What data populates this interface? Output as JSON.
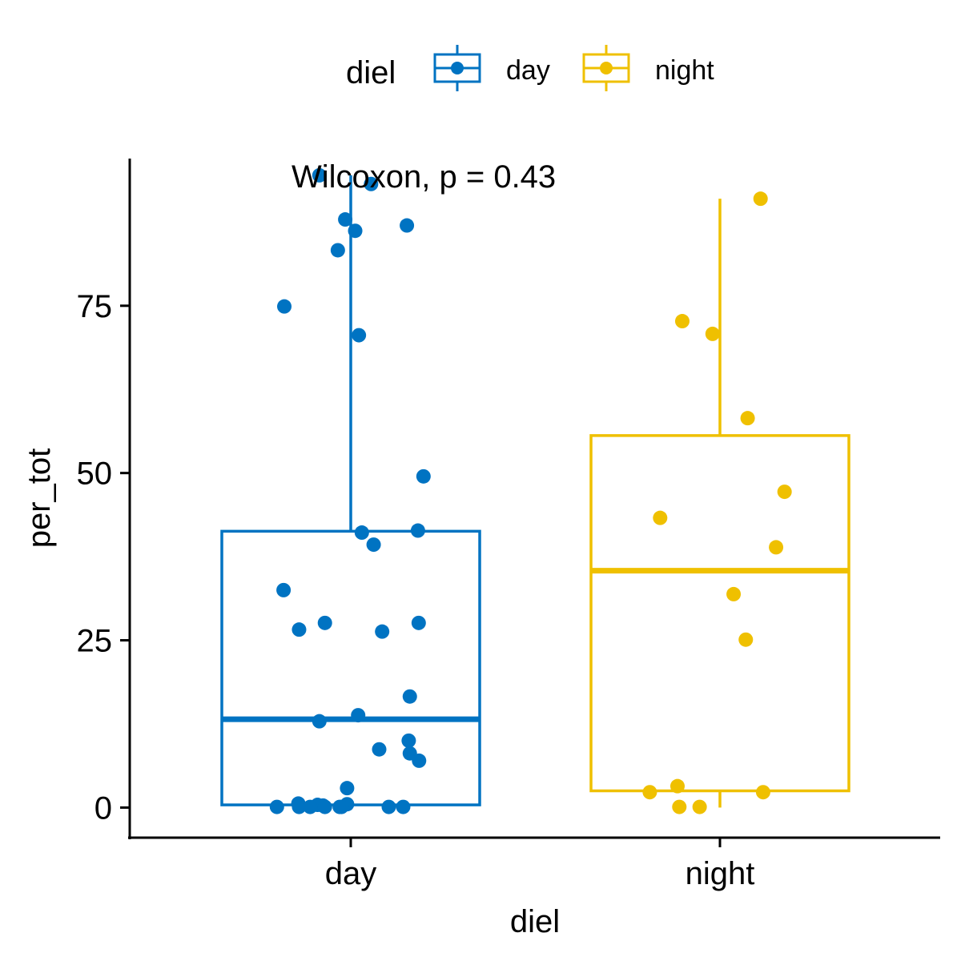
{
  "chart_data": {
    "type": "box",
    "xlabel": "diel",
    "ylabel": "per_tot",
    "annotation": "Wilcoxon, p = 0.43",
    "legend": {
      "title": "diel",
      "position": "top",
      "entries": [
        "day",
        "night"
      ]
    },
    "categories": [
      "day",
      "night"
    ],
    "ylim": [
      -4.5,
      97
    ],
    "yticks": [
      0,
      25,
      50,
      75
    ],
    "grid": false,
    "colors": {
      "day": "#0073C2",
      "night": "#EFC000"
    },
    "boxes": [
      {
        "category": "day",
        "whisker_low": 0,
        "q1": 0.4,
        "median": 13.2,
        "q3": 41.3,
        "whisker_high": 94.5
      },
      {
        "category": "night",
        "whisker_low": 0,
        "q1": 2.5,
        "median": 35.4,
        "q3": 55.6,
        "whisker_high": 91
      }
    ],
    "points": [
      {
        "category": "day",
        "y": 94.5,
        "jitter": -0.085
      },
      {
        "category": "day",
        "y": 93.2,
        "jitter": 0.055
      },
      {
        "category": "day",
        "y": 87.9,
        "jitter": -0.015
      },
      {
        "category": "day",
        "y": 86.2,
        "jitter": 0.012
      },
      {
        "category": "day",
        "y": 87.0,
        "jitter": 0.152
      },
      {
        "category": "day",
        "y": 83.3,
        "jitter": -0.035
      },
      {
        "category": "day",
        "y": 74.9,
        "jitter": -0.18
      },
      {
        "category": "day",
        "y": 70.6,
        "jitter": 0.022
      },
      {
        "category": "day",
        "y": 49.5,
        "jitter": 0.197
      },
      {
        "category": "day",
        "y": 41.1,
        "jitter": 0.03
      },
      {
        "category": "day",
        "y": 41.4,
        "jitter": 0.182
      },
      {
        "category": "day",
        "y": 39.3,
        "jitter": 0.062
      },
      {
        "category": "day",
        "y": 32.5,
        "jitter": -0.182
      },
      {
        "category": "day",
        "y": 27.6,
        "jitter": -0.07
      },
      {
        "category": "day",
        "y": 26.6,
        "jitter": -0.14
      },
      {
        "category": "day",
        "y": 26.3,
        "jitter": 0.085
      },
      {
        "category": "day",
        "y": 27.6,
        "jitter": 0.184
      },
      {
        "category": "day",
        "y": 16.6,
        "jitter": 0.16
      },
      {
        "category": "day",
        "y": 13.8,
        "jitter": 0.02
      },
      {
        "category": "day",
        "y": 12.9,
        "jitter": -0.085
      },
      {
        "category": "day",
        "y": 10.0,
        "jitter": 0.157
      },
      {
        "category": "day",
        "y": 8.7,
        "jitter": 0.077
      },
      {
        "category": "day",
        "y": 8.1,
        "jitter": 0.16
      },
      {
        "category": "day",
        "y": 7.0,
        "jitter": 0.185
      },
      {
        "category": "day",
        "y": 2.9,
        "jitter": -0.01
      },
      {
        "category": "day",
        "y": 0.6,
        "jitter": -0.142
      },
      {
        "category": "day",
        "y": 0.4,
        "jitter": -0.09
      },
      {
        "category": "day",
        "y": 0.3,
        "jitter": -0.075
      },
      {
        "category": "day",
        "y": 0.5,
        "jitter": -0.01
      },
      {
        "category": "day",
        "y": 0.1,
        "jitter": -0.2
      },
      {
        "category": "day",
        "y": 0.1,
        "jitter": -0.14
      },
      {
        "category": "day",
        "y": 0.1,
        "jitter": -0.11
      },
      {
        "category": "day",
        "y": 0.1,
        "jitter": -0.07
      },
      {
        "category": "day",
        "y": 0.1,
        "jitter": -0.03
      },
      {
        "category": "day",
        "y": 0.1,
        "jitter": -0.025
      },
      {
        "category": "day",
        "y": 0.1,
        "jitter": 0.103
      },
      {
        "category": "day",
        "y": 0.1,
        "jitter": 0.142
      },
      {
        "category": "night",
        "y": 91.0,
        "jitter": 0.11
      },
      {
        "category": "night",
        "y": 72.7,
        "jitter": -0.102
      },
      {
        "category": "night",
        "y": 70.8,
        "jitter": -0.02
      },
      {
        "category": "night",
        "y": 58.2,
        "jitter": 0.075
      },
      {
        "category": "night",
        "y": 47.2,
        "jitter": 0.175
      },
      {
        "category": "night",
        "y": 43.3,
        "jitter": -0.162
      },
      {
        "category": "night",
        "y": 38.9,
        "jitter": 0.152
      },
      {
        "category": "night",
        "y": 31.9,
        "jitter": 0.037
      },
      {
        "category": "night",
        "y": 25.1,
        "jitter": 0.07
      },
      {
        "category": "night",
        "y": 3.2,
        "jitter": -0.115
      },
      {
        "category": "night",
        "y": 2.3,
        "jitter": -0.19
      },
      {
        "category": "night",
        "y": 2.3,
        "jitter": 0.117
      },
      {
        "category": "night",
        "y": 0.1,
        "jitter": -0.11
      },
      {
        "category": "night",
        "y": 0.1,
        "jitter": -0.055
      }
    ]
  }
}
